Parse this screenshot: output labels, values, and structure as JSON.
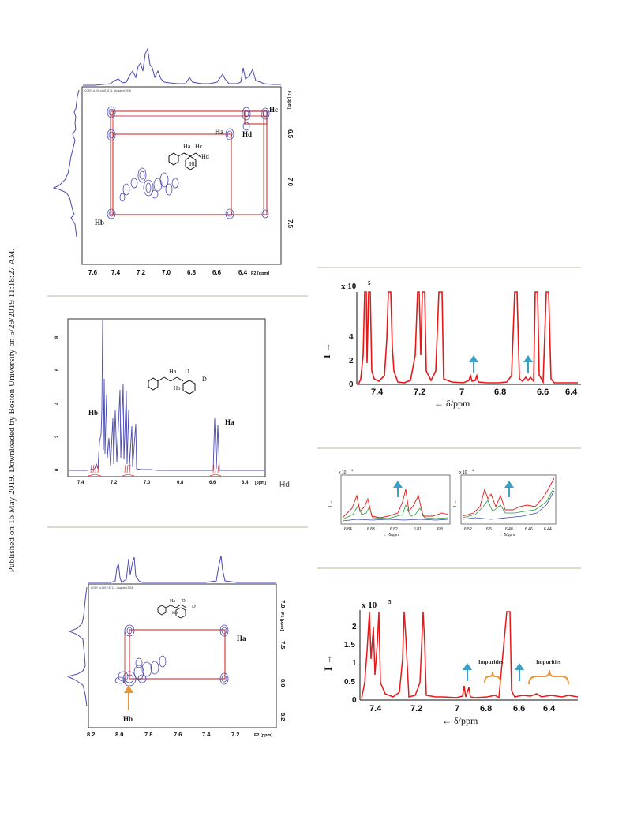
{
  "sidebar": {
    "text": "Published on 16 May 2019. Downloaded by Boston University on 5/29/2019 11:18:27 AM."
  },
  "cosy1": {
    "header": "COSY .d-109-prot2 ID 11 - Acquired 2018",
    "x_ticks": [
      "7.6",
      "7.4",
      "7.2",
      "7.0",
      "6.8",
      "6.6",
      "6.4"
    ],
    "x_unit": "F2 [ppm]",
    "y_ticks": [
      "6.5",
      "7.0",
      "7.5"
    ],
    "y_unit": "F1 [ppm]",
    "labels": {
      "hc": "Hc",
      "ha": "Ha",
      "hd": "Hd",
      "hb": "Hb"
    },
    "molecule": {
      "ha": "Ha",
      "hc": "Hc",
      "hd": "Hd",
      "hb": "Hb"
    }
  },
  "hnmr": {
    "y_ticks": [
      "0",
      "2",
      "4",
      "6",
      "8"
    ],
    "x_ticks": [
      "7.4",
      "7.2",
      "7.0",
      "6.8",
      "6.6",
      "6.4"
    ],
    "x_unit": "[ppm]",
    "hd_label": "Hd",
    "hb_label": "Hb",
    "ha_label": "Ha",
    "molecule": {
      "ha": "Ha",
      "d1": "D",
      "d2": "D",
      "hb": "Hb"
    }
  },
  "cosy2": {
    "header": "COSY .d-109-2 ID 12 - Acquired 2018",
    "x_ticks": [
      "8.2",
      "8.0",
      "7.8",
      "7.6",
      "7.4",
      "7.2"
    ],
    "x_unit": "F2 [ppm]",
    "y_ticks": [
      "7.0",
      "7.5",
      "8.0",
      "8.2"
    ],
    "y_unit": "F1 [ppm]",
    "ha_label": "Ha",
    "hb_label": "Hb",
    "molecule": {
      "ha": "Ha",
      "d1": "D",
      "d2": "D",
      "hb": "Hb"
    }
  },
  "spec1": {
    "multiplier": "x 10",
    "exponent": "5",
    "y_label": "I →",
    "y_ticks": [
      "0",
      "2",
      "4"
    ],
    "x_ticks": [
      "7.4",
      "7.2",
      "7",
      "6.8",
      "6.6",
      "6.4"
    ],
    "x_label": "← δ/ppm"
  },
  "spec2": {
    "left": {
      "multiplier": "x 10",
      "exponent": "4",
      "y_label": "I →",
      "x_ticks": [
        "6.84",
        "6.83",
        "6.82",
        "6.81",
        "6.8"
      ],
      "x_label": "← δ/ppm"
    },
    "right": {
      "multiplier": "x 10",
      "exponent": "4",
      "y_label": "I →",
      "x_ticks": [
        "6.52",
        "6.5",
        "6.48",
        "6.46",
        "6.44"
      ],
      "x_label": "← δ/ppm"
    }
  },
  "spec3": {
    "multiplier": "x 10",
    "exponent": "5",
    "y_label": "I →",
    "y_ticks": [
      "0",
      "0.5",
      "1",
      "1.5",
      "2"
    ],
    "x_ticks": [
      "7.4",
      "7.2",
      "7",
      "6.8",
      "6.6",
      "6.4"
    ],
    "x_label": "← δ/ppm",
    "impurities_1": "Impurities",
    "impurities_2": "Impurities"
  },
  "colors": {
    "contour": "#4a4ab0",
    "box": "#d84040",
    "trace": "#e81818",
    "arrow": "#3aa0c8",
    "orange_arrow": "#e8963c",
    "separator": "#dcdccb"
  }
}
